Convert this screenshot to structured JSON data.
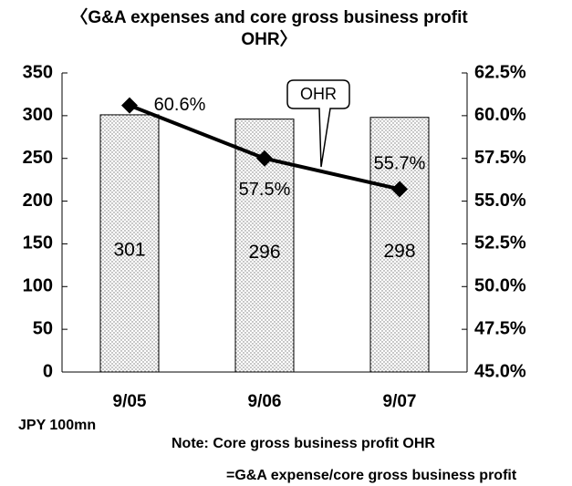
{
  "chart_data": {
    "type": "bar",
    "title": "〈G&A expenses and core gross business profit OHR〉",
    "categories": [
      "9/05",
      "9/06",
      "9/07"
    ],
    "series": [
      {
        "type": "bar",
        "color": "#ffffff",
        "values": [
          301,
          296,
          298
        ]
      },
      {
        "type": "line",
        "name": "OHR",
        "axis": "y2",
        "color": "#000000",
        "values": [
          60.6,
          57.5,
          55.7
        ],
        "value_labels": [
          "60.6%",
          "57.5%",
          "55.7%"
        ]
      }
    ],
    "ylim": [
      0,
      350
    ],
    "yticks": [
      0,
      50,
      100,
      150,
      200,
      250,
      300,
      350
    ],
    "y2lim": [
      45,
      62.5
    ],
    "y2ticks": [
      {
        "value": 45,
        "label": "45.0%"
      },
      {
        "value": 47.5,
        "label": "47.5%"
      },
      {
        "value": 50,
        "label": "50.0%"
      },
      {
        "value": 52.5,
        "label": "52.5%"
      },
      {
        "value": 55,
        "label": "55.0%"
      },
      {
        "value": 57.5,
        "label": "57.5%"
      },
      {
        "value": 60,
        "label": "60.0%"
      },
      {
        "value": 62.5,
        "label": "62.5%"
      }
    ],
    "annotations": [
      "JPY 100mn",
      "Note: Core gross business profit OHR",
      "=G&A expense/core gross business profit"
    ],
    "grid": false
  }
}
